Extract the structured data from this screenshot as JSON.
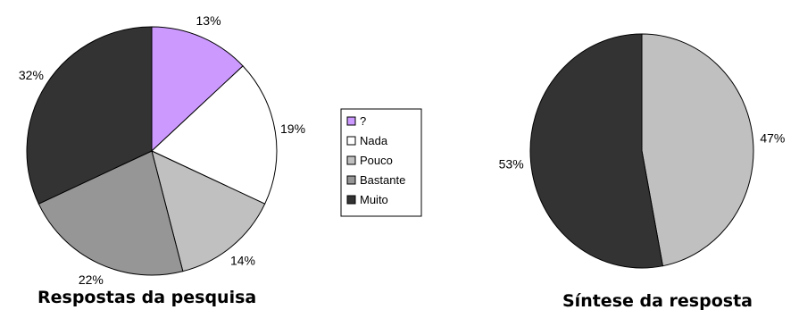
{
  "chart_data": [
    {
      "type": "pie",
      "title": "Respostas da pesquisa",
      "categories": [
        "?",
        "Nada",
        "Pouco",
        "Bastante",
        "Muito"
      ],
      "values": [
        13,
        19,
        14,
        22,
        32
      ],
      "labels": [
        "13%",
        "19%",
        "14%",
        "22%",
        "32%"
      ],
      "colors": [
        "#cc99ff",
        "#ffffff",
        "#c0c0c0",
        "#969696",
        "#333333"
      ],
      "legend": {
        "placement": "right",
        "items": [
          {
            "label": "?",
            "color": "#cc99ff"
          },
          {
            "label": "Nada",
            "color": "#ffffff"
          },
          {
            "label": "Pouco",
            "color": "#c0c0c0"
          },
          {
            "label": "Bastante",
            "color": "#969696"
          },
          {
            "label": "Muito",
            "color": "#333333"
          }
        ]
      }
    },
    {
      "type": "pie",
      "title": "Síntese da resposta",
      "values": [
        47,
        53
      ],
      "labels": [
        "47%",
        "53%"
      ],
      "colors": [
        "#c0c0c0",
        "#333333"
      ]
    }
  ]
}
